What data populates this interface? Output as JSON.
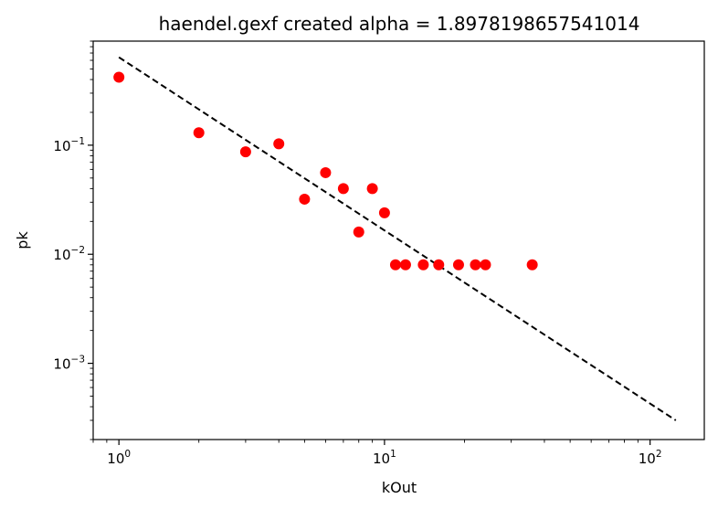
{
  "chart_data": {
    "type": "scatter",
    "title": "haendel.gexf created alpha = 1.8978198657541014",
    "xlabel": "kOut",
    "ylabel": "pk",
    "xscale": "log",
    "yscale": "log",
    "xlim": [
      0.8,
      160
    ],
    "ylim": [
      0.0002,
      0.9
    ],
    "grid": false,
    "x_ticks": [
      {
        "value": 1,
        "base": "10",
        "exp": "0"
      },
      {
        "value": 10,
        "base": "10",
        "exp": "1"
      },
      {
        "value": 100,
        "base": "10",
        "exp": "2"
      }
    ],
    "y_ticks": [
      {
        "value": 0.001,
        "base": "10",
        "exp": "−3"
      },
      {
        "value": 0.01,
        "base": "10",
        "exp": "−2"
      },
      {
        "value": 0.1,
        "base": "10",
        "exp": "−1"
      }
    ],
    "series": [
      {
        "type": "scatter",
        "color": "#ff0000",
        "points": [
          {
            "x": 1,
            "y": 0.42
          },
          {
            "x": 2,
            "y": 0.13
          },
          {
            "x": 3,
            "y": 0.087
          },
          {
            "x": 4,
            "y": 0.103
          },
          {
            "x": 5,
            "y": 0.032
          },
          {
            "x": 6,
            "y": 0.056
          },
          {
            "x": 7,
            "y": 0.04
          },
          {
            "x": 8,
            "y": 0.016
          },
          {
            "x": 9,
            "y": 0.04
          },
          {
            "x": 10,
            "y": 0.024
          },
          {
            "x": 11,
            "y": 0.008
          },
          {
            "x": 12,
            "y": 0.008
          },
          {
            "x": 14,
            "y": 0.008
          },
          {
            "x": 16,
            "y": 0.008
          },
          {
            "x": 19,
            "y": 0.008
          },
          {
            "x": 22,
            "y": 0.008
          },
          {
            "x": 24,
            "y": 0.008
          },
          {
            "x": 36,
            "y": 0.008
          }
        ]
      },
      {
        "type": "line",
        "style": "dashed",
        "color": "#000000",
        "points": [
          {
            "x": 1,
            "y": 0.64
          },
          {
            "x": 125,
            "y": 0.0003
          }
        ]
      }
    ]
  }
}
